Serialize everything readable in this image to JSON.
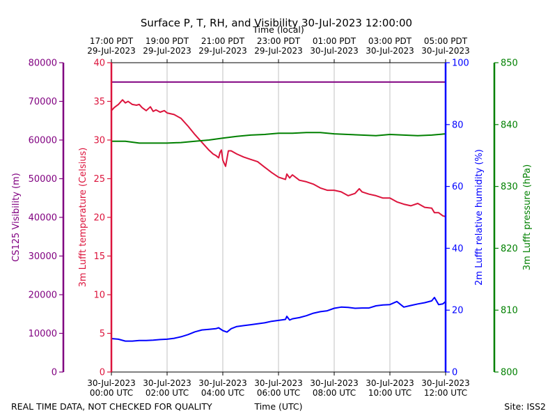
{
  "chart_data": {
    "type": "line",
    "title": "Surface P, T, RH, and Visibility 30-Jul-2023 12:00:00",
    "xlabel_bottom": "Time (UTC)",
    "xlabel_top": "Time (local)",
    "footer_left": "REAL TIME DATA, NOT CHECKED FOR QUALITY",
    "footer_right": "Site: ISS2",
    "x_ticks_utc": [
      [
        "30-Jul-2023",
        "00:00 UTC"
      ],
      [
        "30-Jul-2023",
        "02:00 UTC"
      ],
      [
        "30-Jul-2023",
        "04:00 UTC"
      ],
      [
        "30-Jul-2023",
        "06:00 UTC"
      ],
      [
        "30-Jul-2023",
        "08:00 UTC"
      ],
      [
        "30-Jul-2023",
        "10:00 UTC"
      ],
      [
        "30-Jul-2023",
        "12:00 UTC"
      ]
    ],
    "x_ticks_local": [
      [
        "17:00 PDT",
        "29-Jul-2023"
      ],
      [
        "19:00 PDT",
        "29-Jul-2023"
      ],
      [
        "21:00 PDT",
        "29-Jul-2023"
      ],
      [
        "23:00 PDT",
        "29-Jul-2023"
      ],
      [
        "01:00 PDT",
        "30-Jul-2023"
      ],
      [
        "03:00 PDT",
        "30-Jul-2023"
      ],
      [
        "05:00 PDT",
        "30-Jul-2023"
      ]
    ],
    "x_range_hours": [
      0,
      12
    ],
    "grid": "vertical",
    "axes": {
      "visibility": {
        "label": "CS125 Visibility (m)",
        "color": "#800080",
        "range": [
          0,
          80000
        ],
        "ticks": [
          "0",
          "10000",
          "20000",
          "30000",
          "40000",
          "50000",
          "60000",
          "70000",
          "80000"
        ]
      },
      "temperature": {
        "label": "3m Lufft temperature (Celsius)",
        "color": "#dc143c",
        "range": [
          0,
          40
        ],
        "ticks": [
          "0",
          "5",
          "10",
          "15",
          "20",
          "25",
          "30",
          "35",
          "40"
        ]
      },
      "humidity": {
        "label": "2m Lufft relative humidity (%)",
        "color": "#0000ff",
        "range": [
          0,
          100
        ],
        "ticks": [
          "0",
          "20",
          "40",
          "60",
          "80",
          "100"
        ]
      },
      "pressure": {
        "label": "3m Lufft pressure (hPa)",
        "color": "#008000",
        "range": [
          800,
          850
        ],
        "ticks": [
          "800",
          "810",
          "820",
          "830",
          "840",
          "850"
        ]
      }
    },
    "series": [
      {
        "axis": "visibility",
        "color": "#800080",
        "x": [
          0,
          12
        ],
        "y": [
          75000,
          75000
        ]
      },
      {
        "axis": "temperature",
        "color": "#dc143c",
        "x": [
          0,
          0.1,
          0.25,
          0.4,
          0.5,
          0.6,
          0.75,
          0.9,
          1.0,
          1.1,
          1.25,
          1.4,
          1.5,
          1.6,
          1.75,
          1.9,
          2.0,
          2.25,
          2.5,
          2.75,
          3.0,
          3.25,
          3.5,
          3.65,
          3.75,
          3.85,
          3.9,
          3.95,
          4.0,
          4.1,
          4.2,
          4.3,
          4.5,
          4.75,
          5.0,
          5.25,
          5.5,
          5.75,
          6.0,
          6.25,
          6.3,
          6.4,
          6.5,
          6.75,
          7.0,
          7.25,
          7.5,
          7.75,
          8.0,
          8.25,
          8.5,
          8.75,
          8.9,
          9.0,
          9.25,
          9.5,
          9.75,
          10.0,
          10.25,
          10.5,
          10.75,
          11.0,
          11.25,
          11.5,
          11.6,
          11.75,
          11.9,
          12.0
        ],
        "y": [
          33.8,
          34.2,
          34.6,
          35.2,
          34.8,
          35.0,
          34.6,
          34.5,
          34.6,
          34.2,
          33.8,
          34.3,
          33.7,
          33.9,
          33.6,
          33.8,
          33.5,
          33.3,
          32.8,
          31.8,
          30.7,
          29.7,
          28.7,
          28.2,
          28.0,
          27.7,
          28.4,
          28.7,
          27.4,
          26.6,
          28.6,
          28.6,
          28.2,
          27.8,
          27.5,
          27.2,
          26.5,
          25.8,
          25.2,
          24.9,
          25.6,
          25.1,
          25.5,
          24.8,
          24.6,
          24.3,
          23.8,
          23.5,
          23.5,
          23.3,
          22.8,
          23.1,
          23.7,
          23.3,
          23.0,
          22.8,
          22.5,
          22.5,
          22.0,
          21.7,
          21.5,
          21.8,
          21.3,
          21.2,
          20.6,
          20.6,
          20.2,
          20.1
        ]
      },
      {
        "axis": "humidity",
        "color": "#0000ff",
        "x": [
          0,
          0.25,
          0.5,
          0.75,
          1.0,
          1.25,
          1.5,
          1.75,
          2.0,
          2.25,
          2.5,
          2.75,
          3.0,
          3.25,
          3.5,
          3.75,
          3.85,
          4.0,
          4.15,
          4.3,
          4.5,
          4.75,
          5.0,
          5.25,
          5.5,
          5.75,
          6.0,
          6.25,
          6.3,
          6.4,
          6.5,
          6.75,
          7.0,
          7.25,
          7.5,
          7.75,
          8.0,
          8.25,
          8.5,
          8.75,
          9.0,
          9.25,
          9.5,
          9.75,
          10.0,
          10.25,
          10.5,
          10.75,
          11.0,
          11.25,
          11.5,
          11.6,
          11.75,
          11.9,
          12.0
        ],
        "y": [
          10.8,
          10.6,
          10.0,
          10.0,
          10.2,
          10.2,
          10.3,
          10.5,
          10.6,
          10.9,
          11.4,
          12.1,
          13.0,
          13.6,
          13.8,
          14.0,
          14.3,
          13.4,
          12.9,
          14.0,
          14.7,
          15.0,
          15.3,
          15.6,
          15.9,
          16.4,
          16.7,
          17.0,
          18.0,
          16.8,
          17.2,
          17.6,
          18.2,
          19.0,
          19.5,
          19.8,
          20.6,
          21.0,
          20.9,
          20.6,
          20.7,
          20.7,
          21.4,
          21.7,
          21.8,
          22.8,
          21.0,
          21.5,
          22.0,
          22.4,
          23.0,
          24.1,
          21.8,
          22.0,
          22.8
        ]
      },
      {
        "axis": "pressure",
        "color": "#008000",
        "x": [
          0,
          0.5,
          1.0,
          1.5,
          2.0,
          2.5,
          3.0,
          3.5,
          4.0,
          4.5,
          5.0,
          5.5,
          6.0,
          6.5,
          7.0,
          7.5,
          8.0,
          8.5,
          9.0,
          9.5,
          10.0,
          10.5,
          11.0,
          11.5,
          12.0
        ],
        "y": [
          837.3,
          837.3,
          837.0,
          837.0,
          837.0,
          837.1,
          837.3,
          837.5,
          837.8,
          838.1,
          838.3,
          838.4,
          838.6,
          838.6,
          838.7,
          838.7,
          838.5,
          838.4,
          838.3,
          838.2,
          838.4,
          838.3,
          838.2,
          838.3,
          838.5
        ]
      }
    ]
  }
}
